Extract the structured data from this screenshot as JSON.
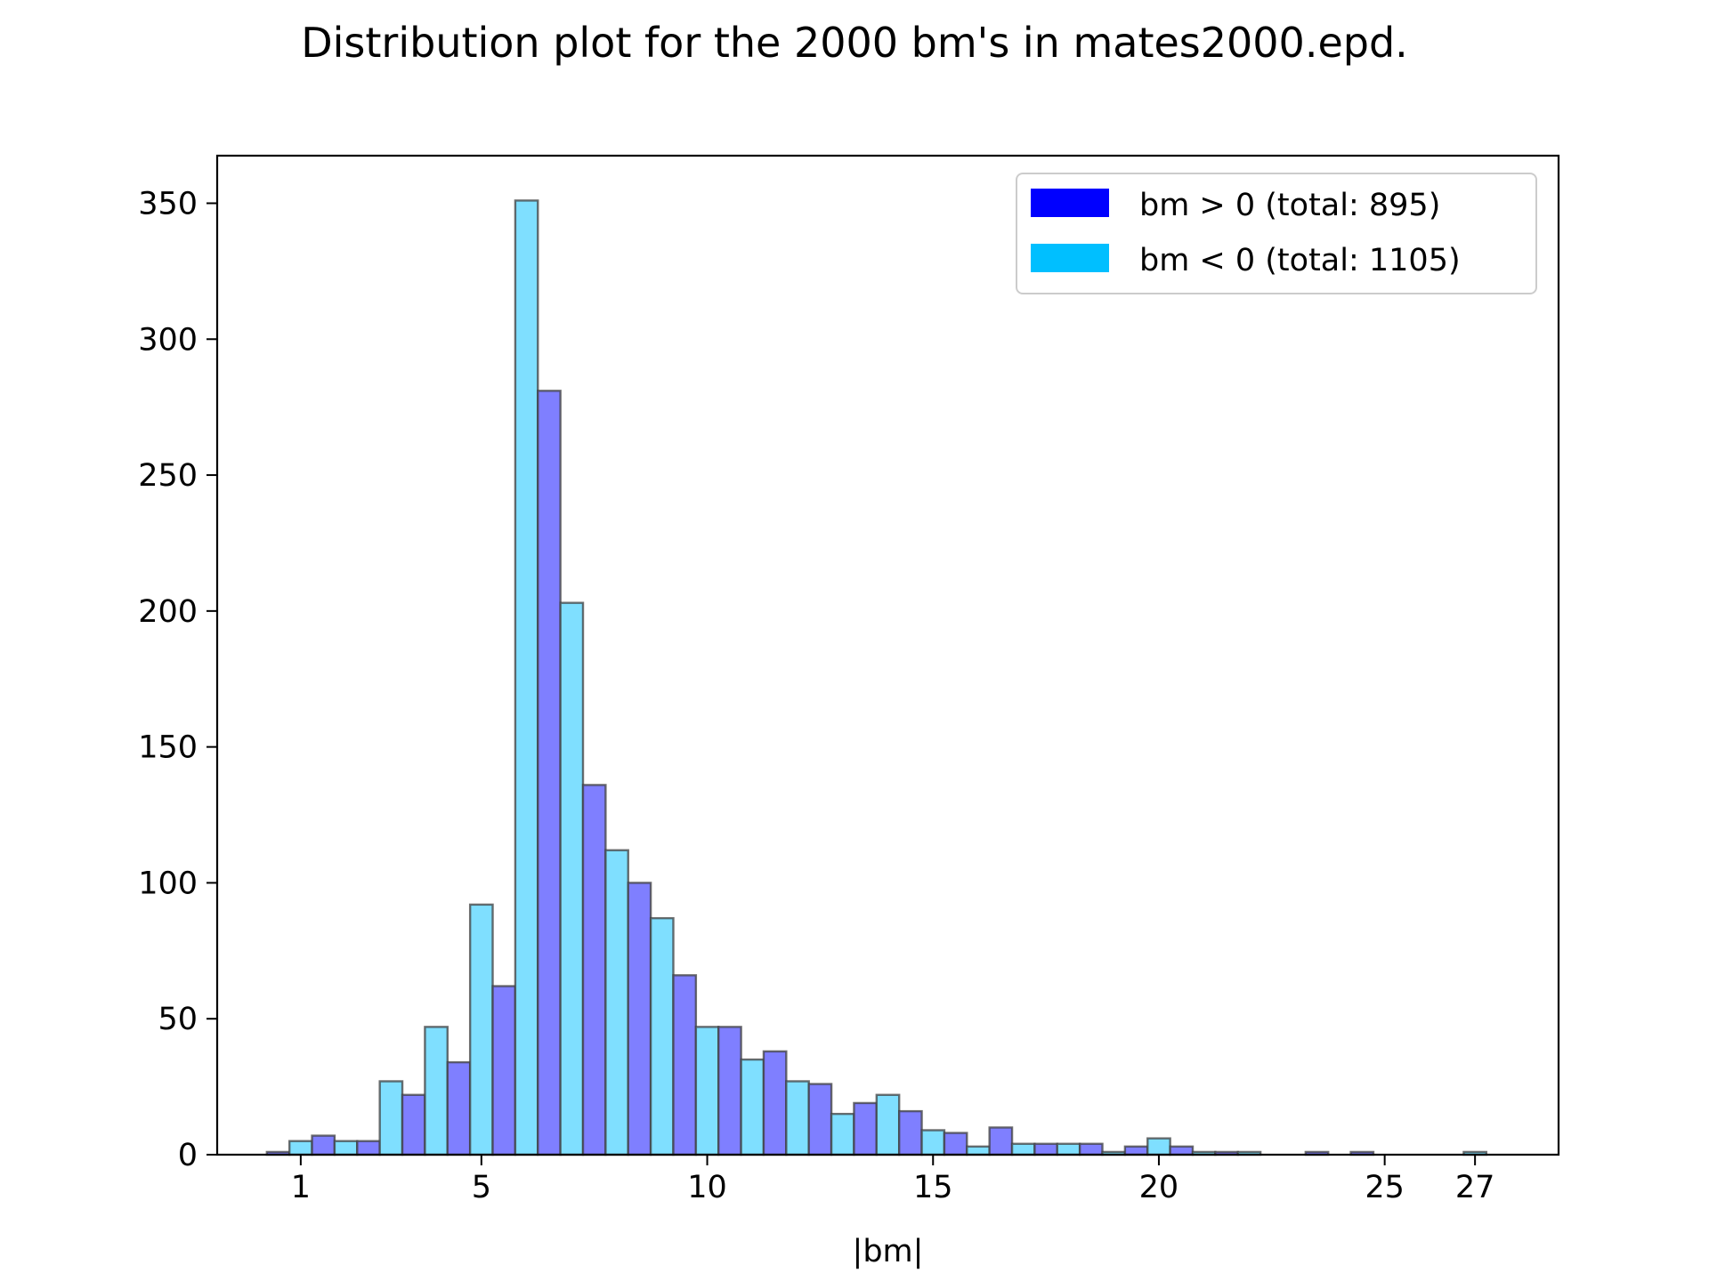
{
  "chart_data": {
    "type": "bar",
    "title": "Distribution plot for the 2000 bm's in mates2000.epd.",
    "xlabel": "|bm|",
    "ylabel": "",
    "xlim": [
      -0.85,
      28.85
    ],
    "ylim": [
      0,
      367.5
    ],
    "xticks": [
      {
        "value": 1,
        "label": "1"
      },
      {
        "value": 5,
        "label": "5"
      },
      {
        "value": 10,
        "label": "10"
      },
      {
        "value": 15,
        "label": "15"
      },
      {
        "value": 20,
        "label": "20"
      },
      {
        "value": 25,
        "label": "25"
      },
      {
        "value": 27,
        "label": "27"
      }
    ],
    "yticks": [
      {
        "value": 0,
        "label": "0"
      },
      {
        "value": 50,
        "label": "50"
      },
      {
        "value": 100,
        "label": "100"
      },
      {
        "value": 150,
        "label": "150"
      },
      {
        "value": 200,
        "label": "200"
      },
      {
        "value": 250,
        "label": "250"
      },
      {
        "value": 300,
        "label": "300"
      },
      {
        "value": 350,
        "label": "350"
      }
    ],
    "grid": false,
    "legend_position": "top-right",
    "bin_width": 0.5,
    "series": [
      {
        "name": "bm > 0 (total: 895)",
        "legend_color": "#0000ff",
        "bar_color": "#7f7fff",
        "bars": [
          {
            "x": 0.5,
            "count": 1
          },
          {
            "x": 1.5,
            "count": 7
          },
          {
            "x": 2.5,
            "count": 5
          },
          {
            "x": 3.5,
            "count": 22
          },
          {
            "x": 4.5,
            "count": 34
          },
          {
            "x": 5.5,
            "count": 62
          },
          {
            "x": 6.5,
            "count": 281
          },
          {
            "x": 7.5,
            "count": 136
          },
          {
            "x": 8.5,
            "count": 100
          },
          {
            "x": 9.5,
            "count": 66
          },
          {
            "x": 10.5,
            "count": 47
          },
          {
            "x": 11.5,
            "count": 38
          },
          {
            "x": 12.5,
            "count": 26
          },
          {
            "x": 13.5,
            "count": 19
          },
          {
            "x": 14.5,
            "count": 16
          },
          {
            "x": 15.5,
            "count": 8
          },
          {
            "x": 16.5,
            "count": 10
          },
          {
            "x": 17.5,
            "count": 4
          },
          {
            "x": 18.5,
            "count": 4
          },
          {
            "x": 19.5,
            "count": 3
          },
          {
            "x": 20.5,
            "count": 3
          },
          {
            "x": 21.5,
            "count": 1
          },
          {
            "x": 23.5,
            "count": 1
          },
          {
            "x": 24.5,
            "count": 1
          }
        ]
      },
      {
        "name": "bm < 0 (total: 1105)",
        "legend_color": "#00bfff",
        "bar_color": "#7fdfff",
        "bars": [
          {
            "x": 1.0,
            "count": 5
          },
          {
            "x": 2.0,
            "count": 5
          },
          {
            "x": 3.0,
            "count": 27
          },
          {
            "x": 4.0,
            "count": 47
          },
          {
            "x": 5.0,
            "count": 92
          },
          {
            "x": 6.0,
            "count": 351
          },
          {
            "x": 7.0,
            "count": 203
          },
          {
            "x": 8.0,
            "count": 112
          },
          {
            "x": 9.0,
            "count": 87
          },
          {
            "x": 10.0,
            "count": 47
          },
          {
            "x": 11.0,
            "count": 35
          },
          {
            "x": 12.0,
            "count": 27
          },
          {
            "x": 13.0,
            "count": 15
          },
          {
            "x": 14.0,
            "count": 22
          },
          {
            "x": 15.0,
            "count": 9
          },
          {
            "x": 16.0,
            "count": 3
          },
          {
            "x": 17.0,
            "count": 4
          },
          {
            "x": 18.0,
            "count": 4
          },
          {
            "x": 19.0,
            "count": 1
          },
          {
            "x": 20.0,
            "count": 6
          },
          {
            "x": 21.0,
            "count": 1
          },
          {
            "x": 22.0,
            "count": 1
          },
          {
            "x": 27.0,
            "count": 1
          }
        ]
      }
    ]
  }
}
